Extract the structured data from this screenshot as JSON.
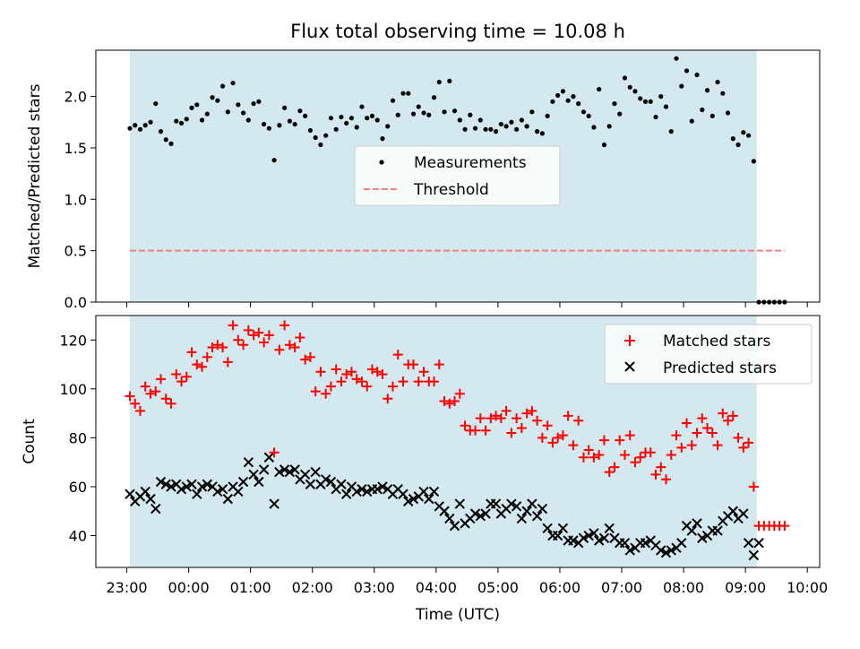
{
  "colors": {
    "shade": "#d3e9ef",
    "threshold": "#f28080",
    "matched": "#ff0000",
    "predicted": "#000000",
    "measurement": "#000000"
  },
  "chart_data": [
    {
      "type": "scatter",
      "title": "Flux total observing time = 10.08 h",
      "ylabel": "Matched/Predicted stars",
      "xlabel": "",
      "xlim": [
        "22:30",
        "10:12"
      ],
      "ylim": [
        0,
        2.45
      ],
      "yticks": [
        "0.0",
        "0.5",
        "1.0",
        "1.5",
        "2.0"
      ],
      "observing_window": [
        "23:03",
        "09:11"
      ],
      "legend_position": "center",
      "series": [
        {
          "name": "Measurements",
          "x": [
            "23:03",
            "23:08",
            "23:13",
            "23:18",
            "23:23",
            "23:28",
            "23:33",
            "23:38",
            "23:43",
            "23:48",
            "23:53",
            "23:58",
            "00:03",
            "00:08",
            "00:13",
            "00:18",
            "00:23",
            "00:28",
            "00:33",
            "00:38",
            "00:43",
            "00:48",
            "00:53",
            "00:58",
            "01:03",
            "01:08",
            "01:13",
            "01:18",
            "01:23",
            "01:28",
            "01:33",
            "01:38",
            "01:43",
            "01:48",
            "01:53",
            "01:58",
            "02:03",
            "02:08",
            "02:13",
            "02:18",
            "02:23",
            "02:28",
            "02:33",
            "02:38",
            "02:43",
            "02:48",
            "02:53",
            "02:58",
            "03:03",
            "03:08",
            "03:13",
            "03:18",
            "03:23",
            "03:28",
            "03:33",
            "03:38",
            "03:43",
            "03:48",
            "03:53",
            "03:58",
            "04:03",
            "04:08",
            "04:13",
            "04:18",
            "04:23",
            "04:28",
            "04:33",
            "04:38",
            "04:43",
            "04:48",
            "04:53",
            "04:58",
            "05:03",
            "05:08",
            "05:13",
            "05:18",
            "05:23",
            "05:28",
            "05:33",
            "05:38",
            "05:43",
            "05:48",
            "05:53",
            "05:58",
            "06:03",
            "06:08",
            "06:13",
            "06:18",
            "06:23",
            "06:28",
            "06:33",
            "06:38",
            "06:43",
            "06:48",
            "06:53",
            "06:58",
            "07:03",
            "07:08",
            "07:13",
            "07:18",
            "07:23",
            "07:28",
            "07:33",
            "07:38",
            "07:43",
            "07:48",
            "07:53",
            "07:58",
            "08:03",
            "08:08",
            "08:13",
            "08:18",
            "08:23",
            "08:28",
            "08:33",
            "08:38",
            "08:43",
            "08:48",
            "08:53",
            "08:58",
            "09:03",
            "09:08",
            "09:13",
            "09:18",
            "09:23",
            "09:28",
            "09:33",
            "09:38"
          ],
          "y": [
            1.69,
            1.72,
            1.68,
            1.72,
            1.75,
            1.93,
            1.66,
            1.58,
            1.54,
            1.76,
            1.74,
            1.78,
            1.89,
            1.92,
            1.77,
            1.83,
            1.99,
            1.96,
            2.1,
            1.85,
            2.13,
            1.92,
            1.84,
            1.77,
            1.93,
            1.95,
            1.73,
            1.69,
            1.38,
            1.72,
            1.89,
            1.76,
            1.73,
            1.86,
            1.81,
            1.67,
            1.6,
            1.53,
            1.62,
            1.79,
            1.68,
            1.8,
            1.74,
            1.79,
            1.7,
            1.9,
            1.79,
            1.81,
            1.77,
            1.59,
            1.71,
            1.96,
            1.82,
            2.03,
            2.03,
            1.83,
            1.9,
            1.84,
            1.82,
            1.99,
            2.14,
            1.85,
            2.15,
            1.86,
            1.77,
            1.68,
            1.82,
            1.69,
            1.77,
            1.68,
            1.68,
            1.66,
            1.73,
            1.71,
            1.75,
            1.68,
            1.77,
            1.71,
            1.85,
            1.66,
            1.64,
            1.81,
            1.95,
            2.01,
            2.05,
            1.96,
            2.0,
            1.93,
            1.85,
            1.81,
            1.7,
            2.07,
            1.53,
            1.71,
            1.93,
            1.83,
            2.18,
            2.09,
            2.05,
            1.98,
            1.95,
            1.95,
            1.8,
            2.0,
            1.9,
            1.66,
            2.37,
            2.1,
            2.25,
            1.76,
            2.21,
            1.87,
            2.06,
            1.81,
            2.14,
            2.03,
            1.84,
            1.59,
            1.53,
            1.65,
            1.62,
            1.37,
            0.0,
            0.0,
            0.0,
            0.0,
            0.0,
            0.0
          ]
        },
        {
          "name": "Threshold",
          "x": [
            "23:03",
            "09:38"
          ],
          "y": [
            0.5,
            0.5
          ]
        }
      ]
    },
    {
      "type": "scatter",
      "title": "",
      "ylabel": "Count",
      "xlabel": "Time (UTC)",
      "xlim": [
        "22:30",
        "10:12"
      ],
      "ylim": [
        27,
        130
      ],
      "yticks": [
        "40",
        "60",
        "80",
        "100",
        "120"
      ],
      "xticks": [
        "23:00",
        "00:00",
        "01:00",
        "02:00",
        "03:00",
        "04:00",
        "05:00",
        "06:00",
        "07:00",
        "08:00",
        "09:00",
        "10:00"
      ],
      "observing_window": [
        "23:03",
        "09:11"
      ],
      "legend_position": "top-right",
      "series": [
        {
          "name": "Matched stars",
          "x": [
            "23:03",
            "23:08",
            "23:13",
            "23:18",
            "23:23",
            "23:28",
            "23:33",
            "23:38",
            "23:43",
            "23:48",
            "23:53",
            "23:58",
            "00:03",
            "00:08",
            "00:13",
            "00:18",
            "00:23",
            "00:28",
            "00:33",
            "00:38",
            "00:43",
            "00:48",
            "00:53",
            "00:58",
            "01:03",
            "01:08",
            "01:13",
            "01:18",
            "01:23",
            "01:28",
            "01:33",
            "01:38",
            "01:43",
            "01:48",
            "01:53",
            "01:58",
            "02:03",
            "02:08",
            "02:13",
            "02:18",
            "02:23",
            "02:28",
            "02:33",
            "02:38",
            "02:43",
            "02:48",
            "02:53",
            "02:58",
            "03:03",
            "03:08",
            "03:13",
            "03:18",
            "03:23",
            "03:28",
            "03:33",
            "03:38",
            "03:43",
            "03:48",
            "03:53",
            "03:58",
            "04:03",
            "04:08",
            "04:13",
            "04:18",
            "04:23",
            "04:28",
            "04:33",
            "04:38",
            "04:43",
            "04:48",
            "04:53",
            "04:58",
            "05:03",
            "05:08",
            "05:13",
            "05:18",
            "05:23",
            "05:28",
            "05:33",
            "05:38",
            "05:43",
            "05:48",
            "05:53",
            "05:58",
            "06:03",
            "06:08",
            "06:13",
            "06:18",
            "06:23",
            "06:28",
            "06:33",
            "06:38",
            "06:43",
            "06:48",
            "06:53",
            "06:58",
            "07:03",
            "07:08",
            "07:13",
            "07:18",
            "07:23",
            "07:28",
            "07:33",
            "07:38",
            "07:43",
            "07:48",
            "07:53",
            "07:58",
            "08:03",
            "08:08",
            "08:13",
            "08:18",
            "08:23",
            "08:28",
            "08:33",
            "08:38",
            "08:43",
            "08:48",
            "08:53",
            "08:58",
            "09:03",
            "09:08",
            "09:13",
            "09:18",
            "09:23",
            "09:28",
            "09:33",
            "09:38"
          ],
          "y": [
            97,
            94,
            91,
            101,
            98,
            99,
            104,
            96,
            94,
            106,
            103,
            105,
            115,
            110,
            109,
            113,
            117,
            118,
            117,
            111,
            126,
            120,
            118,
            124,
            122,
            123,
            119,
            122,
            74,
            116,
            126,
            118,
            117,
            121,
            112,
            113,
            99,
            107,
            98,
            101,
            108,
            103,
            106,
            107,
            104,
            103,
            101,
            108,
            107,
            106,
            96,
            101,
            114,
            103,
            110,
            110,
            103,
            107,
            103,
            103,
            110,
            95,
            94,
            95,
            98,
            85,
            83,
            83,
            88,
            83,
            88,
            89,
            88,
            91,
            82,
            88,
            84,
            90,
            91,
            87,
            80,
            85,
            78,
            80,
            81,
            89,
            77,
            87,
            72,
            75,
            72,
            73,
            79,
            66,
            68,
            79,
            73,
            81,
            70,
            72,
            74,
            74,
            65,
            68,
            63,
            73,
            81,
            76,
            86,
            77,
            82,
            88,
            84,
            82,
            77,
            90,
            87,
            89,
            80,
            76,
            78,
            60,
            44,
            44,
            44,
            44,
            44,
            44
          ]
        },
        {
          "name": "Predicted stars",
          "x": [
            "23:03",
            "23:08",
            "23:13",
            "23:18",
            "23:23",
            "23:28",
            "23:33",
            "23:38",
            "23:43",
            "23:48",
            "23:53",
            "23:58",
            "00:03",
            "00:08",
            "00:13",
            "00:18",
            "00:23",
            "00:28",
            "00:33",
            "00:38",
            "00:43",
            "00:48",
            "00:53",
            "00:58",
            "01:03",
            "01:08",
            "01:13",
            "01:18",
            "01:23",
            "01:28",
            "01:33",
            "01:38",
            "01:43",
            "01:48",
            "01:53",
            "01:58",
            "02:03",
            "02:08",
            "02:13",
            "02:18",
            "02:23",
            "02:28",
            "02:33",
            "02:38",
            "02:43",
            "02:48",
            "02:53",
            "02:58",
            "03:03",
            "03:08",
            "03:13",
            "03:18",
            "03:23",
            "03:28",
            "03:33",
            "03:38",
            "03:43",
            "03:48",
            "03:53",
            "03:58",
            "04:03",
            "04:08",
            "04:13",
            "04:18",
            "04:23",
            "04:28",
            "04:33",
            "04:38",
            "04:43",
            "04:48",
            "04:53",
            "04:58",
            "05:03",
            "05:08",
            "05:13",
            "05:18",
            "05:23",
            "05:28",
            "05:33",
            "05:38",
            "05:43",
            "05:48",
            "05:53",
            "05:58",
            "06:03",
            "06:08",
            "06:13",
            "06:18",
            "06:23",
            "06:28",
            "06:33",
            "06:38",
            "06:43",
            "06:48",
            "06:53",
            "06:58",
            "07:03",
            "07:08",
            "07:13",
            "07:18",
            "07:23",
            "07:28",
            "07:33",
            "07:38",
            "07:43",
            "07:48",
            "07:53",
            "07:58",
            "08:03",
            "08:08",
            "08:13",
            "08:18",
            "08:23",
            "08:28",
            "08:33",
            "08:38",
            "08:43",
            "08:48",
            "08:53",
            "08:58",
            "09:03",
            "09:08",
            "09:13"
          ],
          "y": [
            57,
            54,
            56,
            58,
            55,
            51,
            62,
            61,
            60,
            61,
            59,
            60,
            61,
            57,
            60,
            61,
            60,
            58,
            59,
            55,
            60,
            58,
            62,
            70,
            65,
            62,
            67,
            72,
            53,
            66,
            67,
            66,
            67,
            63,
            65,
            61,
            66,
            61,
            63,
            62,
            59,
            61,
            57,
            60,
            58,
            59,
            58,
            59,
            59,
            60,
            59,
            57,
            59,
            57,
            54,
            55,
            56,
            58,
            55,
            58,
            52,
            50,
            47,
            44,
            53,
            45,
            47,
            49,
            48,
            49,
            53,
            53,
            49,
            51,
            53,
            52,
            47,
            50,
            53,
            48,
            51,
            43,
            40,
            40,
            43,
            38,
            38,
            37,
            39,
            40,
            41,
            38,
            39,
            43,
            39,
            37,
            37,
            34,
            35,
            37,
            37,
            38,
            36,
            34,
            33,
            34,
            35,
            37,
            44,
            42,
            45,
            39,
            40,
            42,
            42,
            46,
            48,
            50,
            47,
            49,
            37,
            32,
            37
          ]
        }
      ]
    }
  ]
}
